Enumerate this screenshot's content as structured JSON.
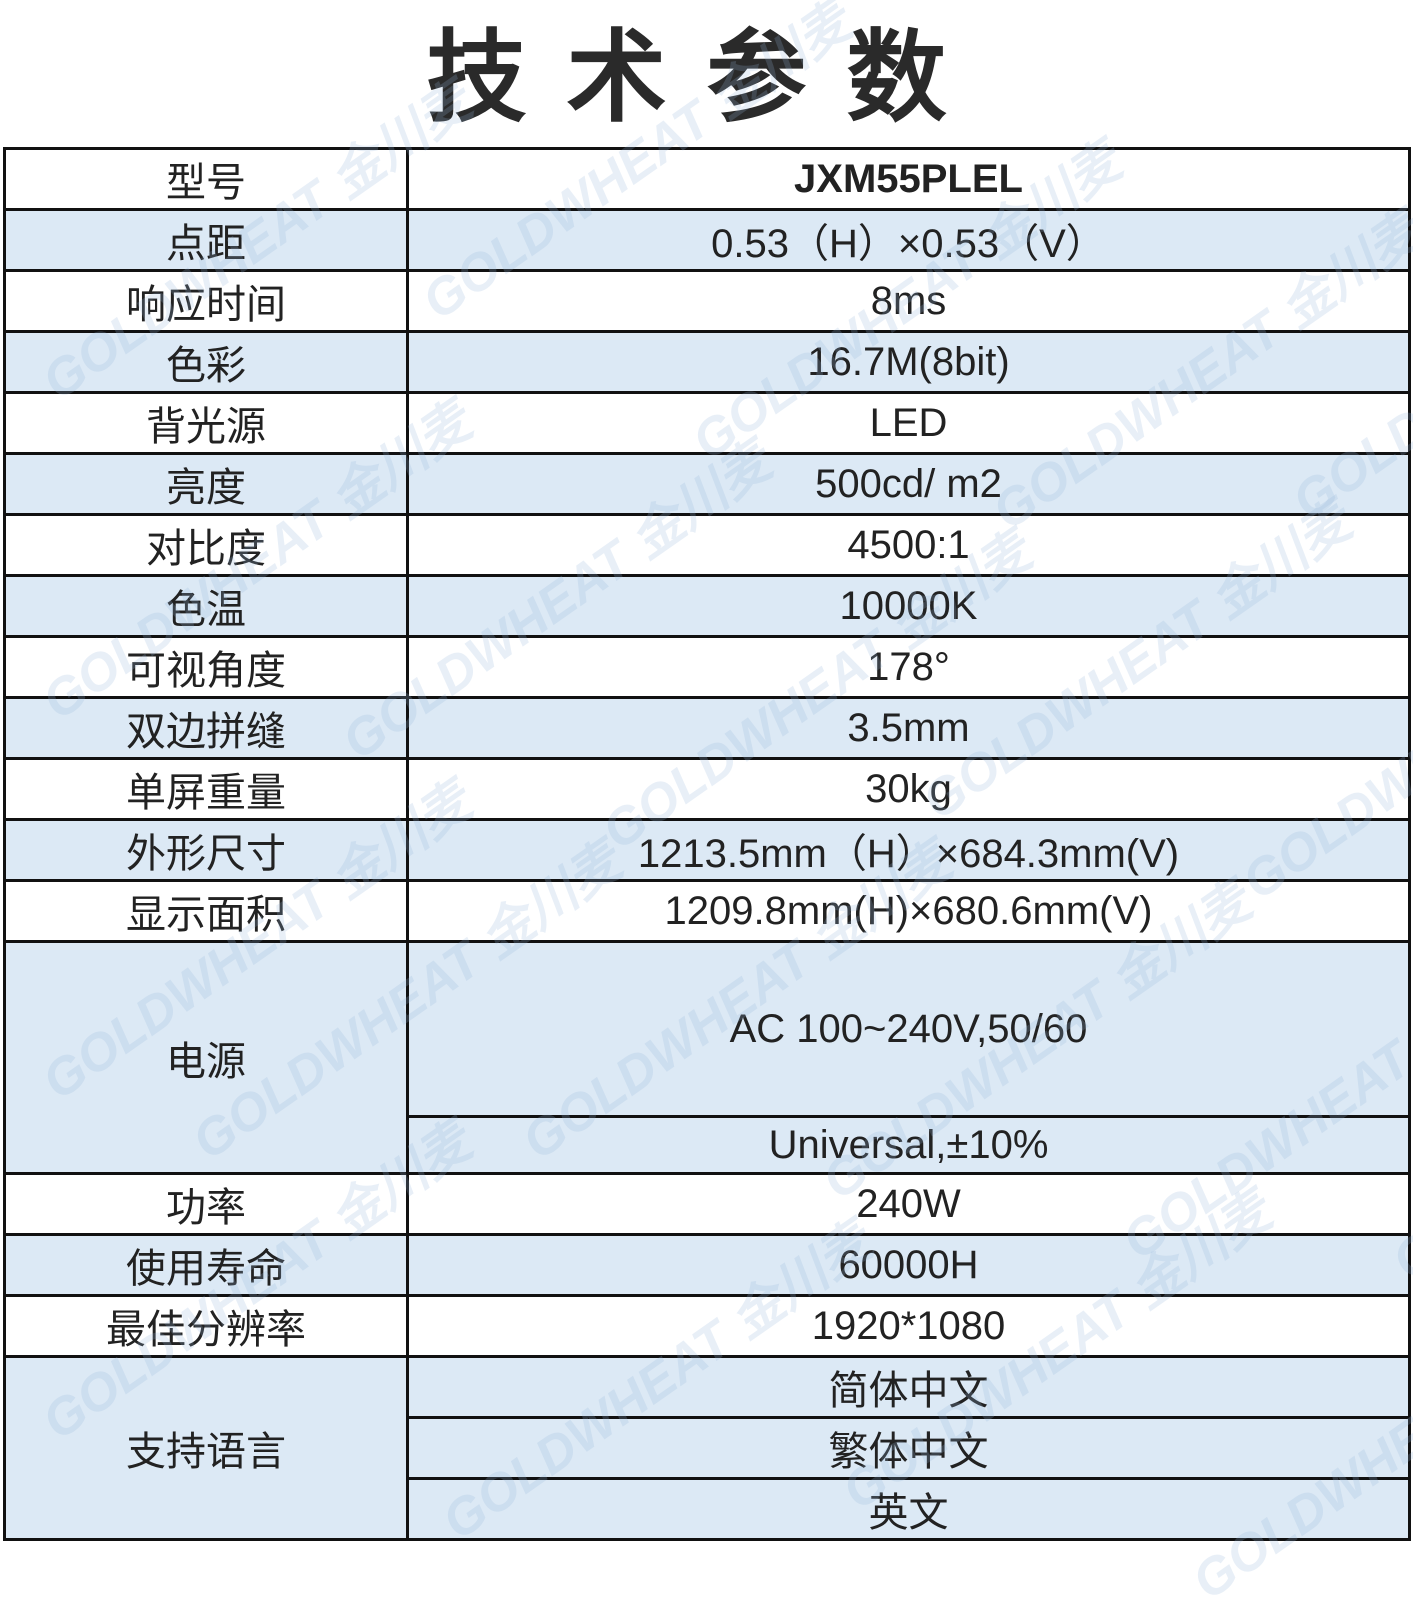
{
  "title": "技术参数",
  "watermark": "GOLDWHEAT 金川麦",
  "colors": {
    "row_blue": "#dce9f5",
    "row_white": "#ffffff",
    "border": "#111111"
  },
  "rows": [
    {
      "label": "型号",
      "value": "JXM55PLEL"
    },
    {
      "label": "点距",
      "value": "0.53（H）×0.53（V）"
    },
    {
      "label": "响应时间",
      "value": "8ms"
    },
    {
      "label": "色彩",
      "value": "16.7M(8bit)"
    },
    {
      "label": "背光源",
      "value": "LED"
    },
    {
      "label": "亮度",
      "value": "500cd/ m2"
    },
    {
      "label": "对比度",
      "value": "4500:1"
    },
    {
      "label": "色温",
      "value": "10000K"
    },
    {
      "label": "可视角度",
      "value": "178°"
    },
    {
      "label": "双边拼缝",
      "value": "3.5mm"
    },
    {
      "label": "单屏重量",
      "value": "30kg"
    },
    {
      "label": "外形尺寸",
      "value": "1213.5mm（H）×684.3mm(V)"
    },
    {
      "label": "显示面积",
      "value": "1209.8mm(H)×680.6mm(V)"
    }
  ],
  "power": {
    "label": "电源",
    "values": [
      "AC 100~240V,50/60",
      "Universal,±10%"
    ]
  },
  "rows2": [
    {
      "label": "功率",
      "value": "240W"
    },
    {
      "label": "使用寿命",
      "value": "60000H"
    },
    {
      "label": "最佳分辨率",
      "value": "1920*1080"
    }
  ],
  "languages": {
    "label": "支持语言",
    "values": [
      "简体中文",
      "繁体中文",
      "英文"
    ]
  }
}
